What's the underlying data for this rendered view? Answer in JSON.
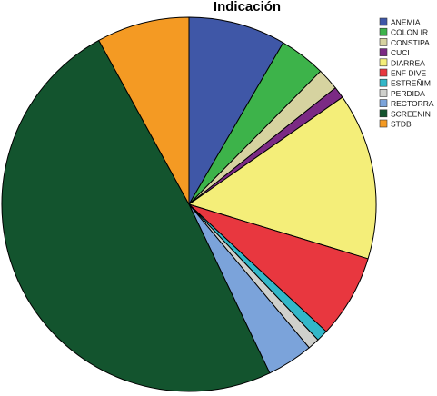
{
  "chart_data": {
    "type": "pie",
    "title": "Indicación",
    "start": "12 o'clock",
    "direction": "clockwise",
    "legend_position": "right",
    "slices": [
      {
        "label": "ANEMIA",
        "value": 8.4,
        "color": "#3f57a7"
      },
      {
        "label": "COLON IR",
        "value": 4.0,
        "color": "#3db34a"
      },
      {
        "label": "CONSTIPA",
        "value": 1.9,
        "color": "#d6d3a0"
      },
      {
        "label": "CUCI",
        "value": 1.0,
        "color": "#7b2a84"
      },
      {
        "label": "DIARREA",
        "value": 14.4,
        "color": "#f4ee79"
      },
      {
        "label": "ENF DIVE",
        "value": 7.2,
        "color": "#e8373f"
      },
      {
        "label": "ESTREÑIM",
        "value": 1.0,
        "color": "#33b7c8"
      },
      {
        "label": "PERDIDA",
        "value": 1.0,
        "color": "#cfd0cc"
      },
      {
        "label": "RECTORRA",
        "value": 4.0,
        "color": "#7ba3da"
      },
      {
        "label": "SCREENIN",
        "value": 49.1,
        "color": "#13542e"
      },
      {
        "label": "STDB",
        "value": 8.0,
        "color": "#f49a23"
      }
    ]
  }
}
